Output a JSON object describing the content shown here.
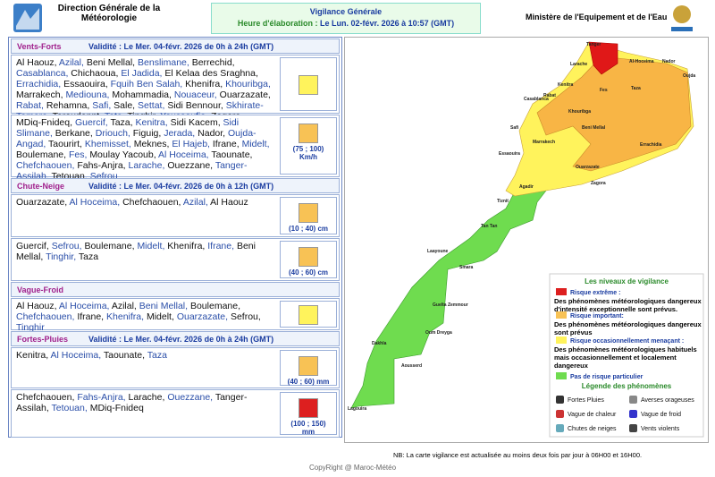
{
  "header": {
    "org_line1": "Direction Générale de la",
    "org_line2": "Météorologie",
    "title": "Vigilance Générale",
    "elaboration": "Heure d'élaboration :",
    "elaboration_date": "Le Lun. 02-févr. 2026 à 10:57 (GMT)",
    "ministry": "Ministère de l'Equipement et de l'Eau"
  },
  "sections": [
    {
      "title": "Vents-Forts",
      "validity": "Validité : Le Mer. 04-févr. 2026 de 0h à 24h (GMT)",
      "rows": [
        {
          "color": "#fff35c",
          "cities": [
            "Al Haouz,",
            "Azilal,",
            "Beni Mellal,",
            "Benslimane,",
            "Berrechid,",
            "Casablanca,",
            "Chichaoua,",
            "El Jadida,",
            "El Kelaa des Sraghna,",
            "Errachidia,",
            "Essaouira,",
            "Fquih Ben Salah,",
            "Khenifra,",
            "Khouribga,",
            "Marrakech,",
            "Mediouna,",
            "Mohammadia,",
            "Nouaceur,",
            "Ouarzazate,",
            "Rabat,",
            "Rehamna,",
            "Safi,",
            "Sale,",
            "Settat,",
            "Sidi Bennour,",
            "Skhirate-Temara,",
            "Taroudannt,",
            "Tata,",
            "Tinghir,",
            "Youssoufia,",
            "Zagora"
          ]
        },
        {
          "color": "#f8c255",
          "range": [
            "(75 ; 100)",
            "Km/h"
          ],
          "cities": [
            "MDiq-Fnideq,",
            "Guercif,",
            "Taza,",
            "Kenitra,",
            "Sidi Kacem,",
            "Sidi Slimane,",
            "Berkane,",
            "Driouch,",
            "Figuig,",
            "Jerada,",
            "Nador,",
            "Oujda-Angad,",
            "Taourirt,",
            "Khemisset,",
            "Meknes,",
            "El Hajeb,",
            "Ifrane,",
            "Midelt,",
            "Boulemane,",
            "Fes,",
            "Moulay Yacoub,",
            "Al Hoceima,",
            "Taounate,",
            "Chefchaouen,",
            "Fahs-Anjra,",
            "Larache,",
            "Ouezzane,",
            "Tanger-Assilah,",
            "Tetouan,",
            "Sefrou"
          ]
        }
      ]
    },
    {
      "title": "Chute-Neige",
      "validity": "Validité : Le Mer. 04-févr. 2026 de 0h à 12h (GMT)",
      "rows": [
        {
          "color": "#f8c255",
          "range": [
            "(10 ; 40) cm"
          ],
          "cities": [
            "Ouarzazate,",
            "Al Hoceima,",
            "Chefchaouen,",
            "Azilal,",
            "Al Haouz"
          ]
        },
        {
          "color": "#f8c255",
          "range": [
            "(40 ; 60) cm"
          ],
          "cities": [
            "Guercif,",
            "Sefrou,",
            "Boulemane,",
            "Midelt,",
            "Khenifra,",
            "Ifrane,",
            "Beni Mellal,",
            "Tinghir,",
            "Taza"
          ]
        }
      ]
    },
    {
      "title": "Vague-Froid",
      "validity": "",
      "rows": [
        {
          "color": "#fff35c",
          "cities": [
            "Al Haouz,",
            "Al Hoceima,",
            "Azilal,",
            "Beni Mellal,",
            "Boulemane,",
            "Chefchaouen,",
            "Ifrane,",
            "Khenifra,",
            "Midelt,",
            "Ouarzazate,",
            "Sefrou,",
            "Tinghir"
          ]
        }
      ]
    },
    {
      "title": "Fortes-Pluies",
      "validity": "Validité : Le Mer. 04-févr. 2026 de 0h à 24h (GMT)",
      "rows": [
        {
          "color": "#f8c255",
          "range": [
            "(40 ; 60) mm"
          ],
          "cities": [
            "Kenitra,",
            "Al Hoceima,",
            "Taounate,",
            "Taza"
          ]
        },
        {
          "color": "#dd1f1f",
          "range": [
            "(100 ; 150)",
            "mm"
          ],
          "cities": [
            "Chefchaouen,",
            "Fahs-Anjra,",
            "Larache,",
            "Ouezzane,",
            "Tanger-Assilah,",
            "Tetouan,",
            "MDiq-Fnideq"
          ]
        }
      ]
    }
  ],
  "map": {
    "labels": [
      "Tanger",
      "Larache",
      "Al-Hoceima",
      "Nador",
      "Oujda",
      "Kenitra",
      "Rabat",
      "Casablanca",
      "Khouribga",
      "Fes",
      "Taza",
      "Beni Mellal",
      "Safi",
      "Marrakech",
      "Essaouira",
      "Errachidia",
      "Ouarzazate",
      "Agadir",
      "Zagora",
      "Tiznit",
      "Tan Tan",
      "Laayoune",
      "Smara",
      "Guelta Zemmour",
      "Oum Dreyga",
      "Dakhla",
      "Aousserd",
      "Lagouira"
    ]
  },
  "legend": {
    "title": "Les niveaux de vigilance",
    "levels": [
      {
        "color": "#dd1f1f",
        "label": "Risque extrême :",
        "desc": "Des phénomènes météorologiques dangereux d'intensité exceptionnelle sont prévus."
      },
      {
        "color": "#f8c255",
        "label": "Risque important:",
        "desc": "Des phénomènes météorologiques dangereux sont prévus"
      },
      {
        "color": "#fff35c",
        "label": "Risque occasionnellement menaçant :",
        "desc": "Des phénomènes météorologiques habituels mais occasionnellement et localement dangereux"
      },
      {
        "color": "#6fdc4f",
        "label": "Pas de risque particulier",
        "desc": ""
      }
    ],
    "phenomena_title": "Légende des phénomènes",
    "phenomena": [
      "Fortes Pluies",
      "Averses orageuses",
      "Vague de chaleur",
      "Vague de froid",
      "Chutes de neiges",
      "Vents violents"
    ]
  },
  "note": "NB: La carte vigilance est actualisée au moins deux fois par jour à 06H00 et 16H00.",
  "copyright": "CopyRight @ Maroc-Météo"
}
